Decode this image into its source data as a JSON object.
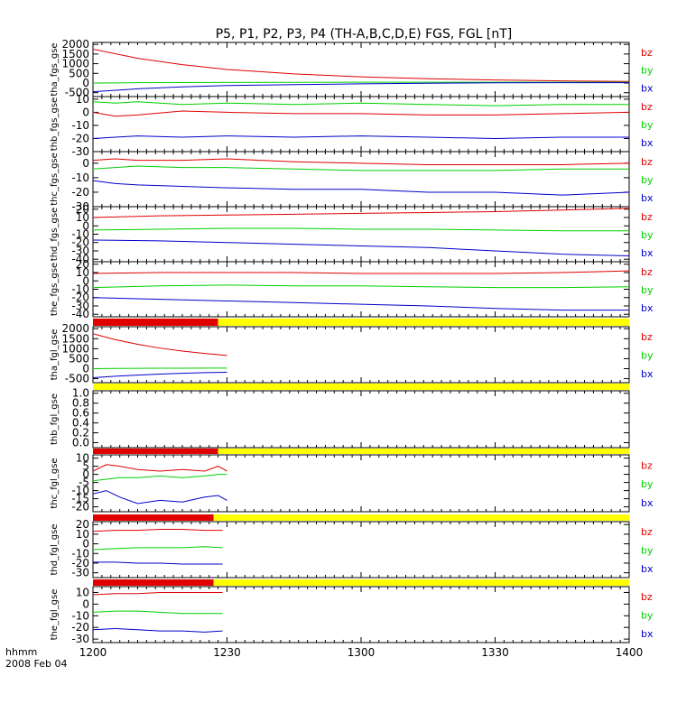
{
  "chart_data": {
    "title": "P5, P1, P2, P3, P4 (TH-A,B,C,D,E) FGS, FGL [nT]",
    "xlabel_line1": "hhmm",
    "xlabel_line2": "2008 Feb 04",
    "x_ticks": [
      "1200",
      "1230",
      "1300",
      "1330",
      "1400"
    ],
    "x_tick_values": [
      0,
      30,
      60,
      90,
      120
    ],
    "xlim": [
      0,
      120
    ],
    "colors": {
      "bz": "#e00000",
      "by": "#00d000",
      "bx": "#0000cc",
      "bar_red": "#e00000",
      "bar_yellow": "#ffff00",
      "bar_black": "#000000"
    },
    "panels": [
      {
        "label": "tha_fgs_gse",
        "type": "line",
        "ylim": [
          -700,
          2100
        ],
        "yticks": [
          2000,
          1500,
          1000,
          500,
          0,
          -500
        ],
        "yticklabels": [
          "2000",
          "1500",
          "1000",
          "500",
          "0",
          "-500"
        ],
        "series": [
          {
            "name": "bz",
            "x": [
              0,
              10,
              20,
              30,
              45,
              60,
              75,
              90,
              105,
              120
            ],
            "values": [
              1750,
              1280,
              950,
              700,
              470,
              320,
              220,
              160,
              110,
              80
            ]
          },
          {
            "name": "by",
            "x": [
              0,
              10,
              20,
              30,
              45,
              60,
              75,
              90,
              105,
              120
            ],
            "values": [
              0,
              15,
              25,
              30,
              35,
              40,
              40,
              40,
              40,
              40
            ]
          },
          {
            "name": "bx",
            "x": [
              0,
              10,
              20,
              30,
              45,
              60,
              75,
              90,
              105,
              120
            ],
            "values": [
              -450,
              -300,
              -200,
              -130,
              -80,
              -40,
              -10,
              10,
              15,
              20
            ]
          }
        ]
      },
      {
        "label": "thb_fgs_gse",
        "type": "line",
        "ylim": [
          -30,
          12
        ],
        "yticks": [
          10,
          0,
          -10,
          -20,
          -30
        ],
        "yticklabels": [
          "10",
          "0",
          "-10",
          "-20",
          "-30"
        ],
        "series": [
          {
            "name": "bz",
            "x": [
              0,
              5,
              10,
              20,
              30,
              45,
              60,
              75,
              90,
              105,
              120
            ],
            "values": [
              0,
              -3,
              -2,
              1,
              0,
              -1,
              -1,
              -2,
              -2,
              -1,
              0
            ]
          },
          {
            "name": "by",
            "x": [
              0,
              5,
              10,
              20,
              30,
              45,
              60,
              75,
              90,
              105,
              120
            ],
            "values": [
              8,
              7,
              8,
              6,
              7,
              6,
              7,
              6,
              5,
              6,
              6
            ]
          },
          {
            "name": "bx",
            "x": [
              0,
              5,
              10,
              20,
              30,
              45,
              60,
              75,
              90,
              105,
              120
            ],
            "values": [
              -20,
              -19,
              -18,
              -19,
              -18,
              -19,
              -18,
              -19,
              -20,
              -19,
              -19
            ]
          }
        ]
      },
      {
        "label": "thc_fgs_gse",
        "type": "line",
        "ylim": [
          -30,
          8
        ],
        "yticks": [
          0,
          -10,
          -20,
          -30
        ],
        "yticklabels": [
          "0",
          "-10",
          "-20",
          "-30"
        ],
        "series": [
          {
            "name": "bz",
            "x": [
              0,
              5,
              10,
              20,
              30,
              45,
              60,
              75,
              90,
              105,
              120
            ],
            "values": [
              2,
              3,
              2,
              2,
              3,
              1,
              0,
              -1,
              -1,
              -1,
              0
            ]
          },
          {
            "name": "by",
            "x": [
              0,
              5,
              10,
              20,
              30,
              45,
              60,
              75,
              90,
              105,
              120
            ],
            "values": [
              -4,
              -3,
              -2,
              -3,
              -3,
              -4,
              -5,
              -5,
              -5,
              -4,
              -4
            ]
          },
          {
            "name": "bx",
            "x": [
              0,
              5,
              10,
              20,
              30,
              45,
              60,
              75,
              90,
              105,
              120
            ],
            "values": [
              -12,
              -14,
              -15,
              -16,
              -17,
              -18,
              -18,
              -20,
              -20,
              -22,
              -20
            ]
          }
        ]
      },
      {
        "label": "thd_fgs_gse",
        "type": "line",
        "ylim": [
          -43,
          23
        ],
        "yticks": [
          20,
          10,
          0,
          -10,
          -20,
          -30,
          -40
        ],
        "yticklabels": [
          "20",
          "10",
          "0",
          "-10",
          "-20",
          "-30",
          "-40"
        ],
        "series": [
          {
            "name": "bz",
            "x": [
              0,
              15,
              30,
              45,
              60,
              75,
              90,
              105,
              120
            ],
            "values": [
              10,
              12,
              13,
              14,
              15,
              16,
              17,
              19,
              21
            ]
          },
          {
            "name": "by",
            "x": [
              0,
              15,
              30,
              45,
              60,
              75,
              90,
              105,
              120
            ],
            "values": [
              -5,
              -4,
              -3,
              -3,
              -4,
              -4,
              -5,
              -6,
              -6
            ]
          },
          {
            "name": "bx",
            "x": [
              0,
              15,
              30,
              45,
              60,
              75,
              90,
              105,
              120
            ],
            "values": [
              -17,
              -18,
              -20,
              -22,
              -24,
              -26,
              -30,
              -34,
              -36
            ]
          }
        ]
      },
      {
        "label": "the_fgs_gse",
        "type": "line",
        "ylim": [
          -43,
          23
        ],
        "yticks": [
          20,
          10,
          0,
          -10,
          -20,
          -30,
          -40
        ],
        "yticklabels": [
          "20",
          "10",
          "0",
          "-10",
          "-20",
          "-30",
          "-40"
        ],
        "series": [
          {
            "name": "bz",
            "x": [
              0,
              15,
              30,
              45,
              60,
              75,
              90,
              105,
              120
            ],
            "values": [
              9,
              10,
              10,
              10,
              9,
              9,
              9,
              10,
              12
            ]
          },
          {
            "name": "by",
            "x": [
              0,
              15,
              30,
              45,
              60,
              75,
              90,
              105,
              120
            ],
            "values": [
              -8,
              -6,
              -5,
              -6,
              -6,
              -7,
              -8,
              -8,
              -7
            ]
          },
          {
            "name": "bx",
            "x": [
              0,
              15,
              30,
              45,
              60,
              75,
              90,
              105,
              120
            ],
            "values": [
              -20,
              -22,
              -24,
              -26,
              -28,
              -30,
              -33,
              -35,
              -35
            ]
          }
        ]
      },
      {
        "type": "bar_strip",
        "segments": [
          {
            "from": 0,
            "to": 28,
            "color": "bar_red"
          },
          {
            "from": 28,
            "to": 120,
            "color": "bar_yellow"
          }
        ]
      },
      {
        "label": "tha_fgl_gse",
        "type": "line",
        "ylim": [
          -700,
          2100
        ],
        "yticks": [
          2000,
          1500,
          1000,
          500,
          0,
          -500
        ],
        "yticklabels": [
          "2000",
          "1500",
          "1000",
          "500",
          "0",
          "-500"
        ],
        "series": [
          {
            "name": "bz",
            "x": [
              0,
              5,
              10,
              15,
              20,
              25,
              30
            ],
            "values": [
              1750,
              1450,
              1220,
              1030,
              880,
              760,
              660
            ]
          },
          {
            "name": "by",
            "x": [
              0,
              5,
              10,
              15,
              20,
              25,
              30
            ],
            "values": [
              0,
              10,
              15,
              20,
              25,
              28,
              30
            ]
          },
          {
            "name": "bx",
            "x": [
              0,
              5,
              10,
              15,
              20,
              25,
              30
            ],
            "values": [
              -450,
              -380,
              -320,
              -270,
              -230,
              -200,
              -180
            ]
          }
        ]
      },
      {
        "type": "bar_strip",
        "segments": [
          {
            "from": 0,
            "to": 120,
            "color": "bar_yellow"
          }
        ]
      },
      {
        "label": "thb_fgl_gse",
        "type": "line",
        "ylim": [
          -0.1,
          1.05
        ],
        "yticks": [
          1.0,
          0.8,
          0.6,
          0.4,
          0.2,
          0.0
        ],
        "yticklabels": [
          "1.0",
          "0.8",
          "0.6",
          "0.4",
          "0.2",
          "0.0"
        ],
        "series": []
      },
      {
        "type": "bar_strip",
        "segments": [
          {
            "from": 0,
            "to": 28,
            "color": "bar_red"
          },
          {
            "from": 28,
            "to": 120,
            "color": "bar_yellow"
          }
        ]
      },
      {
        "label": "thc_fgl_gse",
        "type": "line",
        "ylim": [
          -23,
          12
        ],
        "yticks": [
          10,
          5,
          0,
          -5,
          -10,
          -15,
          -20
        ],
        "yticklabels": [
          "10",
          "5",
          "0",
          "-5",
          "-10",
          "-15",
          "-20"
        ],
        "series": [
          {
            "name": "bz",
            "x": [
              0,
              3,
              6,
              10,
              15,
              20,
              25,
              28,
              30
            ],
            "values": [
              2,
              6,
              5,
              3,
              2,
              3,
              2,
              5,
              2
            ]
          },
          {
            "name": "by",
            "x": [
              0,
              3,
              6,
              10,
              15,
              20,
              25,
              28,
              30
            ],
            "values": [
              -4,
              -3,
              -2,
              -2,
              -1,
              -2,
              -1,
              0,
              0
            ]
          },
          {
            "name": "bx",
            "x": [
              0,
              3,
              6,
              10,
              15,
              20,
              25,
              28,
              30
            ],
            "values": [
              -12,
              -10,
              -14,
              -18,
              -16,
              -17,
              -14,
              -13,
              -16
            ]
          }
        ]
      },
      {
        "type": "bar_strip",
        "segments": [
          {
            "from": 0,
            "to": 27,
            "color": "bar_red"
          },
          {
            "from": 27,
            "to": 120,
            "color": "bar_yellow"
          }
        ]
      },
      {
        "label": "thd_fgl_gse",
        "type": "line",
        "ylim": [
          -35,
          23
        ],
        "yticks": [
          20,
          10,
          0,
          -10,
          -20,
          -30
        ],
        "yticklabels": [
          "20",
          "10",
          "0",
          "-10",
          "-20",
          "-30"
        ],
        "series": [
          {
            "name": "bz",
            "x": [
              0,
              5,
              10,
              15,
              20,
              25,
              29
            ],
            "values": [
              13,
              14,
              14,
              15,
              15,
              14,
              14
            ]
          },
          {
            "name": "by",
            "x": [
              0,
              5,
              10,
              15,
              20,
              25,
              29
            ],
            "values": [
              -6,
              -5,
              -4,
              -4,
              -4,
              -3,
              -4
            ]
          },
          {
            "name": "bx",
            "x": [
              0,
              5,
              10,
              15,
              20,
              25,
              29
            ],
            "values": [
              -19,
              -19,
              -20,
              -20,
              -21,
              -21,
              -21
            ]
          }
        ]
      },
      {
        "type": "bar_strip",
        "segments": [
          {
            "from": 0,
            "to": 27,
            "color": "bar_red"
          },
          {
            "from": 27,
            "to": 120,
            "color": "bar_yellow"
          }
        ]
      },
      {
        "label": "the_fgl_gse",
        "type": "line",
        "ylim": [
          -33,
          15
        ],
        "yticks": [
          10,
          0,
          -10,
          -20,
          -30
        ],
        "yticklabels": [
          "10",
          "0",
          "-10",
          "-20",
          "-30"
        ],
        "series": [
          {
            "name": "bz",
            "x": [
              0,
              5,
              10,
              15,
              20,
              25,
              29
            ],
            "values": [
              8,
              9,
              9,
              10,
              10,
              10,
              10
            ]
          },
          {
            "name": "by",
            "x": [
              0,
              5,
              10,
              15,
              20,
              25,
              29
            ],
            "values": [
              -7,
              -6,
              -6,
              -7,
              -8,
              -8,
              -8
            ]
          },
          {
            "name": "bx",
            "x": [
              0,
              5,
              10,
              15,
              20,
              25,
              29
            ],
            "values": [
              -22,
              -21,
              -22,
              -23,
              -23,
              -24,
              -23
            ]
          }
        ]
      }
    ]
  }
}
